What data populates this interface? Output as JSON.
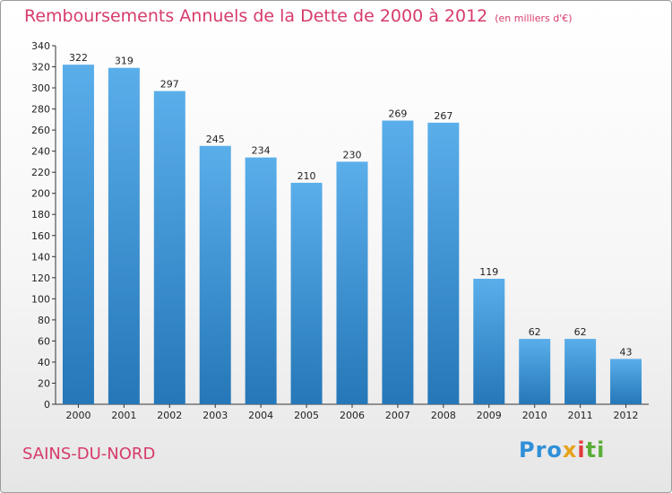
{
  "header": {
    "title": "Remboursements Annuels de la Dette de 2000 à 2012",
    "subtitle": "(en milliers d'€)"
  },
  "footer": {
    "commune": "SAINS-DU-NORD",
    "logo_text": "Proxiti"
  },
  "colors": {
    "bar_light": "#5aaeea",
    "bar_dark": "#2577b8",
    "title": "#d63b6a"
  },
  "chart_data": {
    "type": "bar",
    "title": "Remboursements Annuels de la Dette de 2000 à 2012",
    "subtitle": "(en milliers d'€)",
    "xlabel": "",
    "ylabel": "",
    "categories": [
      "2000",
      "2001",
      "2002",
      "2003",
      "2004",
      "2005",
      "2006",
      "2007",
      "2008",
      "2009",
      "2010",
      "2011",
      "2012"
    ],
    "values": [
      322,
      319,
      297,
      245,
      234,
      210,
      230,
      269,
      267,
      119,
      62,
      62,
      43
    ],
    "ylim": [
      0,
      340
    ],
    "yticks": [
      0,
      20,
      40,
      60,
      80,
      100,
      120,
      140,
      160,
      180,
      200,
      220,
      240,
      260,
      280,
      300,
      320,
      340
    ],
    "grid": false,
    "data_labels": true
  }
}
